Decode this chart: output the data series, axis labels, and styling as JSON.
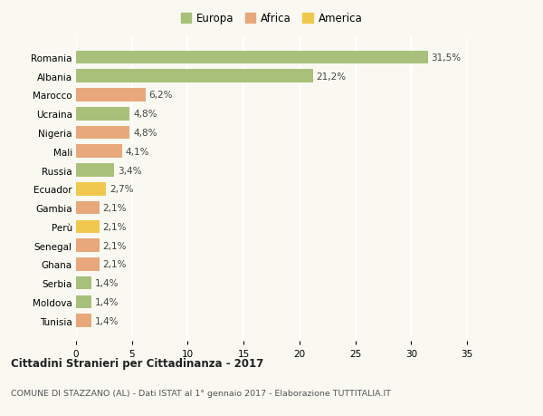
{
  "categories": [
    "Romania",
    "Albania",
    "Marocco",
    "Ucraina",
    "Nigeria",
    "Mali",
    "Russia",
    "Ecuador",
    "Gambia",
    "Perù",
    "Senegal",
    "Ghana",
    "Serbia",
    "Moldova",
    "Tunisia"
  ],
  "values": [
    31.5,
    21.2,
    6.2,
    4.8,
    4.8,
    4.1,
    3.4,
    2.7,
    2.1,
    2.1,
    2.1,
    2.1,
    1.4,
    1.4,
    1.4
  ],
  "labels": [
    "31,5%",
    "21,2%",
    "6,2%",
    "4,8%",
    "4,8%",
    "4,1%",
    "3,4%",
    "2,7%",
    "2,1%",
    "2,1%",
    "2,1%",
    "2,1%",
    "1,4%",
    "1,4%",
    "1,4%"
  ],
  "continents": [
    "Europa",
    "Europa",
    "Africa",
    "Europa",
    "Africa",
    "Africa",
    "Europa",
    "America",
    "Africa",
    "America",
    "Africa",
    "Africa",
    "Europa",
    "Europa",
    "Africa"
  ],
  "colors": {
    "Europa": "#a8c07a",
    "Africa": "#e8a87c",
    "America": "#f0c84e"
  },
  "title": "Cittadini Stranieri per Cittadinanza - 2017",
  "subtitle": "COMUNE DI STAZZANO (AL) - Dati ISTAT al 1° gennaio 2017 - Elaborazione TUTTITALIA.IT",
  "xlim": [
    0,
    35
  ],
  "xticks": [
    0,
    5,
    10,
    15,
    20,
    25,
    30,
    35
  ],
  "background_color": "#f9f9f2",
  "grid_color": "#ffffff"
}
